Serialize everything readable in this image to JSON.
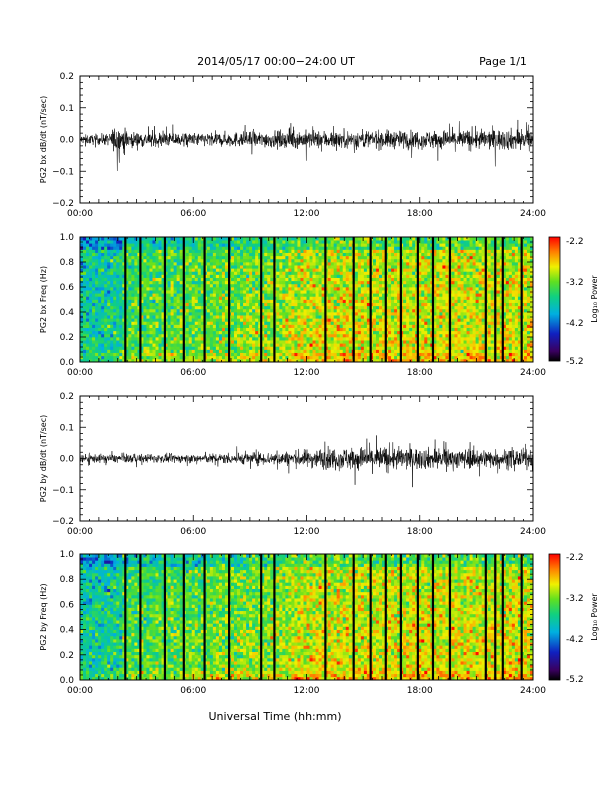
{
  "header": {
    "title": "2014/05/17  00:00−24:00 UT",
    "page": "Page 1/1"
  },
  "footer": {
    "xlabel": "Universal Time (hh:mm)"
  },
  "colorbar": {
    "title": "Log₁₀ Power",
    "ticks": [
      "-2.2",
      "-3.2",
      "-4.2",
      "-5.2"
    ]
  },
  "chart_data": [
    {
      "id": "panel1",
      "type": "line",
      "ylabel": "PG2 bx dB/dt (nT/sec)",
      "ylim": [
        -0.2,
        0.2
      ],
      "ytick_values": [
        -0.2,
        -0.1,
        0.0,
        0.1,
        0.2
      ],
      "yticks": [
        "−0.2",
        "−0.1",
        "0.0",
        "0.1",
        "0.2"
      ],
      "xlim": [
        0,
        24
      ],
      "xtick_values": [
        0,
        6,
        12,
        18,
        24
      ],
      "xticks": [
        "00:00",
        "06:00",
        "12:00",
        "18:00",
        "24:00"
      ],
      "envelope": [
        {
          "t": 0.0,
          "amp": 0.012
        },
        {
          "t": 1.5,
          "amp": 0.016
        },
        {
          "t": 2.0,
          "amp": 0.045
        },
        {
          "t": 2.6,
          "amp": 0.022
        },
        {
          "t": 6.0,
          "amp": 0.018
        },
        {
          "t": 12.0,
          "amp": 0.025
        },
        {
          "t": 18.0,
          "amp": 0.025
        },
        {
          "t": 23.6,
          "amp": 0.03
        },
        {
          "t": 24.0,
          "amp": 0.02
        }
      ]
    },
    {
      "id": "panel2",
      "type": "heatmap",
      "ylabel": "PG2 bx Freq (Hz)",
      "ylim": [
        0.0,
        1.0
      ],
      "ytick_values": [
        0.0,
        0.2,
        0.4,
        0.6,
        0.8,
        1.0
      ],
      "yticks": [
        "0.0",
        "0.2",
        "0.4",
        "0.6",
        "0.8",
        "1.0"
      ],
      "xlim": [
        0,
        24
      ],
      "xtick_values": [
        0,
        6,
        12,
        18,
        24
      ],
      "xticks": [
        "00:00",
        "06:00",
        "12:00",
        "18:00",
        "24:00"
      ],
      "zlim": [
        -5.2,
        -2.2
      ],
      "gaps": [
        2.4,
        3.2,
        4.5,
        5.5,
        6.6,
        7.9,
        9.6,
        10.3,
        13.0,
        14.5,
        15.4,
        16.2,
        17.0,
        17.9,
        18.7,
        19.6,
        21.5,
        22.0,
        22.4,
        23.4
      ]
    },
    {
      "id": "panel3",
      "type": "line",
      "ylabel": "PG2 by dB/dt (nT/sec)",
      "ylim": [
        -0.2,
        0.2
      ],
      "ytick_values": [
        -0.2,
        -0.1,
        0.0,
        0.1,
        0.2
      ],
      "yticks": [
        "−0.2",
        "−0.1",
        "0.0",
        "0.1",
        "0.2"
      ],
      "xlim": [
        0,
        24
      ],
      "xtick_values": [
        0,
        6,
        12,
        18,
        24
      ],
      "xticks": [
        "00:00",
        "06:00",
        "12:00",
        "18:00",
        "24:00"
      ],
      "envelope": [
        {
          "t": 0.0,
          "amp": 0.012
        },
        {
          "t": 6.0,
          "amp": 0.012
        },
        {
          "t": 11.0,
          "amp": 0.02
        },
        {
          "t": 13.0,
          "amp": 0.03
        },
        {
          "t": 16.0,
          "amp": 0.035
        },
        {
          "t": 18.0,
          "amp": 0.03
        },
        {
          "t": 24.0,
          "amp": 0.025
        }
      ]
    },
    {
      "id": "panel4",
      "type": "heatmap",
      "ylabel": "PG2 by Freq (Hz)",
      "ylim": [
        0.0,
        1.0
      ],
      "ytick_values": [
        0.0,
        0.2,
        0.4,
        0.6,
        0.8,
        1.0
      ],
      "yticks": [
        "0.0",
        "0.2",
        "0.4",
        "0.6",
        "0.8",
        "1.0"
      ],
      "xlim": [
        0,
        24
      ],
      "xtick_values": [
        0,
        6,
        12,
        18,
        24
      ],
      "xticks": [
        "00:00",
        "06:00",
        "12:00",
        "18:00",
        "24:00"
      ],
      "zlim": [
        -5.2,
        -2.2
      ],
      "gaps": [
        2.4,
        3.2,
        4.5,
        5.5,
        6.6,
        7.9,
        9.6,
        10.3,
        13.0,
        14.5,
        15.4,
        16.2,
        17.0,
        17.9,
        18.7,
        19.6,
        21.5,
        22.0,
        22.4,
        23.4
      ]
    }
  ]
}
